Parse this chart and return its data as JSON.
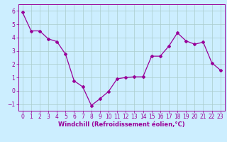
{
  "x": [
    0,
    1,
    2,
    3,
    4,
    5,
    6,
    7,
    8,
    9,
    10,
    11,
    12,
    13,
    14,
    15,
    16,
    17,
    18,
    19,
    20,
    21,
    22,
    23
  ],
  "y": [
    5.9,
    4.5,
    4.5,
    3.9,
    3.7,
    2.75,
    0.75,
    0.3,
    -1.1,
    -0.6,
    -0.05,
    0.9,
    1.0,
    1.05,
    1.05,
    2.6,
    2.6,
    3.35,
    4.35,
    3.75,
    3.5,
    3.65,
    2.1,
    1.55
  ],
  "line_color": "#990099",
  "marker": "D",
  "marker_size": 2.0,
  "bg_color": "#cceeff",
  "grid_color": "#aacccc",
  "xlabel": "Windchill (Refroidissement éolien,°C)",
  "xlabel_color": "#990099",
  "xlabel_fontsize": 6.0,
  "tick_color": "#990099",
  "tick_fontsize": 5.5,
  "ylim": [
    -1.5,
    6.5
  ],
  "xlim": [
    -0.5,
    23.5
  ],
  "yticks": [
    -1,
    0,
    1,
    2,
    3,
    4,
    5,
    6
  ],
  "xticks": [
    0,
    1,
    2,
    3,
    4,
    5,
    6,
    7,
    8,
    9,
    10,
    11,
    12,
    13,
    14,
    15,
    16,
    17,
    18,
    19,
    20,
    21,
    22,
    23
  ]
}
